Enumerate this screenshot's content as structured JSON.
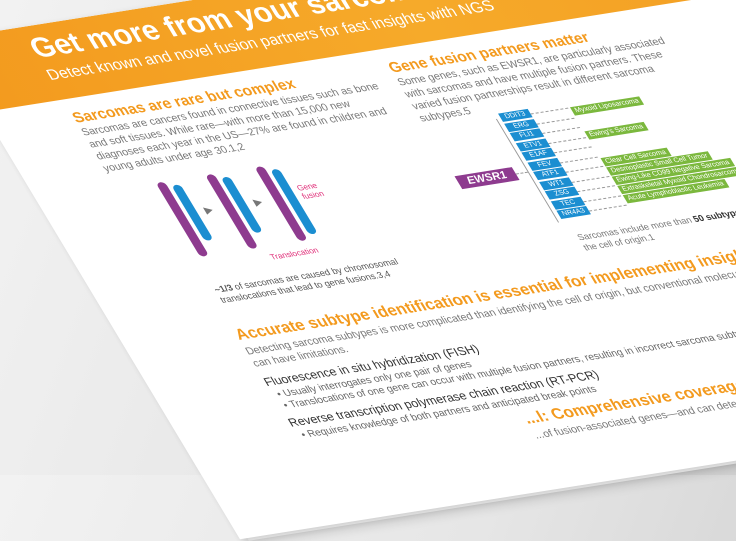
{
  "header": {
    "title": "Get more from your sarcoma analysis",
    "subtitle": "Detect known and novel fusion partners for fast insights with NGS"
  },
  "section1": {
    "heading": "Sarcomas are rare but complex",
    "body": "Sarcomas are cancers found in connective tissues such as bone and soft tissues. While rare—with more than 15,000 new diagnoses each year in the US—27% are found in children and young adults under age 30.1,2"
  },
  "figure1": {
    "gene_fusion_label": "Gene fusion",
    "translocation_label": "Translocation",
    "caption_bold": "~1/3",
    "caption": " of sarcomas are caused by chromosomal translocations that lead to gene fusions.3,4"
  },
  "section2": {
    "heading": "Gene fusion partners matter",
    "body": "Some genes, such as EWSR1, are particularly associated with sarcomas and have multiple fusion partners. These varied fusion partnerships result in different sarcoma subtypes.5"
  },
  "diagram": {
    "hub": "EWSR1",
    "partners": [
      "DDIT3",
      "ERG",
      "FLI1",
      "ETV1",
      "E1AF",
      "FEV",
      "ATF1",
      "WT1",
      "ZSG",
      "TEC",
      "NR4A3"
    ],
    "subtypes": [
      "Myxoid Liposarcoma",
      "Ewing's Sarcoma",
      "Clear Cell Sarcoma",
      "Desmoplastic Small Cell Tumor",
      "Ewing-Like CD99 Negative Sarcoma",
      "Extraskeletal Myxoid Chondrosarcoma",
      "Acute Lymphoblastic Leukemia"
    ],
    "caption_pre": "Sarcomas include more than ",
    "caption_bold": "50 subtypes",
    "caption_post": " based on the cell of origin.1",
    "colors": {
      "gene": "#1b8ed1",
      "subtype": "#7bb83d",
      "hub": "#8e3b8f"
    }
  },
  "section3": {
    "heading": "Accurate subtype identification is essential for implementing insights",
    "body": "Detecting sarcoma subtypes is more complicated than identifying the cell of origin, but conventional molecular analysis methods can have limitations.",
    "fish_title": "Fluorescence in situ hybridization (FISH)",
    "fish_bullets": [
      "Usually interrogates only one pair of genes",
      "Translocations of one gene can occur with multiple fusion partners, resulting in incorrect sarcoma subtype identification"
    ],
    "rtpcr_title": "Reverse transcription polymerase chain reaction (RT-PCR)",
    "rtpcr_bullets": [
      "Requires knowledge of both partners and anticipated break points"
    ]
  },
  "section4": {
    "heading": "...l: Comprehensive coverage in a single assay",
    "body": "...of fusion-associated genes—and can detect novel ... first try."
  }
}
